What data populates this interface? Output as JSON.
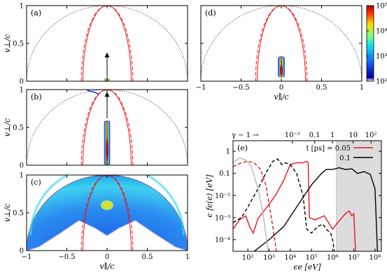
{
  "chart_data": [
    {
      "type": "heatmap",
      "panel": "(a)",
      "xlabel": "",
      "ylabel": "v⊥/c",
      "xlim": [
        -1,
        1
      ],
      "ylim": [
        0,
        1
      ],
      "x_ticks": [],
      "y_ticks": [
        "0",
        "0.5",
        "1"
      ],
      "distribution": {
        "center_x": 0.0,
        "v_perp_max": 0.02,
        "width": 0.02
      },
      "arrow": {
        "x": 0.0,
        "from": 0.05,
        "to": 0.38
      }
    },
    {
      "type": "heatmap",
      "panel": "(b)",
      "xlabel": "",
      "ylabel": "v⊥/c",
      "xlim": [
        -1,
        1
      ],
      "ylim": [
        0,
        1
      ],
      "x_ticks": [],
      "y_ticks": [
        "0",
        "0.5",
        "1"
      ],
      "distribution": {
        "center_x": 0.0,
        "v_perp_min": 0.0,
        "v_perp_max": 0.58,
        "width": 0.05
      },
      "arrow": {
        "x": 0.0,
        "from": 0.62,
        "to": 0.97
      }
    },
    {
      "type": "heatmap",
      "panel": "(c)",
      "xlabel": "v∥/c",
      "ylabel": "v⊥/c",
      "xlim": [
        -1,
        1
      ],
      "ylim": [
        0,
        1
      ],
      "x_ticks": [
        "−1",
        "−0.5",
        "0",
        "0.5",
        "1"
      ],
      "y_ticks": [
        "0",
        "0.5",
        "1"
      ],
      "distribution": {
        "shape": "shell",
        "radius": 1.0,
        "hot_spot": [
          0.0,
          0.6
        ]
      }
    },
    {
      "type": "heatmap",
      "panel": "(d)",
      "xlabel": "v∥/c",
      "ylabel": "",
      "xlim": [
        -1,
        1
      ],
      "ylim": [
        0,
        1
      ],
      "x_ticks": [
        "−1",
        "−0.5",
        "0",
        "0.5",
        "1"
      ],
      "y_ticks": [],
      "distribution": {
        "center_x": 0.0,
        "v_perp_min": 0.05,
        "v_perp_max": 0.32,
        "width": 0.06
      },
      "colorbar": {
        "scale": "log",
        "range": [
          100,
          100000
        ],
        "labels": [
          "10²",
          "10³",
          "10⁴",
          "10⁵"
        ]
      }
    },
    {
      "type": "line",
      "panel": "(e)",
      "xlabel": "ϵe [eV]",
      "ylabel": "ϵ fϵ(ϵ) [eV]",
      "x_scale": "log",
      "y_scale": "log",
      "xlim": [
        20,
        200000000
      ],
      "ylim": [
        3e-05,
        3
      ],
      "x_ticks": [
        "10²",
        "10³",
        "10⁴",
        "10⁵",
        "10⁶",
        "10⁷",
        "10⁸"
      ],
      "y_ticks": [
        "10⁻⁴",
        "10⁻³",
        "10⁻²",
        "0.1",
        "1"
      ],
      "top_axis_label": "γ − 1 →",
      "top_ticks": [
        "10⁻²",
        "0.1",
        "1",
        "10",
        "10²"
      ],
      "legend_title": "t [ps] = 0.05",
      "legend_entries": [
        "0.05",
        "0.1"
      ],
      "shaded_region_x": [
        1500000,
        200000000
      ],
      "series": [
        {
          "name": "0.05",
          "color": "#e8141c",
          "dash": "solid",
          "points": [
            [
              20,
              0.0003
            ],
            [
              40,
              0.0008
            ],
            [
              80,
              0.0012
            ],
            [
              120,
              0.0004
            ],
            [
              180,
              0.0002
            ],
            [
              300,
              0.0009
            ],
            [
              800,
              0.003
            ],
            [
              2000,
              0.01
            ],
            [
              5000,
              0.05
            ],
            [
              10000,
              0.25
            ],
            [
              20000,
              0.3
            ],
            [
              40000,
              0.3
            ],
            [
              60000,
              0.35
            ],
            [
              70000,
              0.3
            ],
            [
              80000,
              0.001
            ],
            [
              150000,
              0.0008
            ],
            [
              400000,
              0.0012
            ],
            [
              1000000,
              0.0003
            ],
            [
              2000000,
              0.0007
            ],
            [
              4000000,
              0.0015
            ],
            [
              6000000,
              0.002
            ],
            [
              8000000,
              0.0012
            ],
            [
              10000000,
              0.0015
            ],
            [
              12000000,
              3e-05
            ]
          ]
        },
        {
          "name": "",
          "color": "#e8141c",
          "dash": "dashed",
          "points": [
            [
              20,
              0.2
            ],
            [
              50,
              0.3
            ],
            [
              100,
              0.35
            ],
            [
              200,
              0.3
            ],
            [
              400,
              0.15
            ],
            [
              700,
              0.03
            ],
            [
              1000,
              0.004
            ],
            [
              1500,
              0.0004
            ],
            [
              2200,
              3e-05
            ]
          ]
        },
        {
          "name": "0.1",
          "color": "#000000",
          "dash": "solid",
          "points": [
            [
              200,
              3e-05
            ],
            [
              1000,
              0.0001
            ],
            [
              5000,
              0.0004
            ],
            [
              20000,
              0.003
            ],
            [
              100000,
              0.03
            ],
            [
              300000,
              0.1
            ],
            [
              500000,
              0.15
            ],
            [
              1000000,
              0.15
            ],
            [
              2000000,
              0.18
            ],
            [
              4000000,
              0.15
            ],
            [
              8000000,
              0.16
            ],
            [
              15000000,
              0.1
            ],
            [
              30000000,
              0.12
            ],
            [
              60000000,
              0.09
            ],
            [
              100000000,
              0.02
            ],
            [
              130000000,
              3e-05
            ]
          ]
        },
        {
          "name": "",
          "color": "#000000",
          "dash": "dashed",
          "points": [
            [
              20,
              0.0006
            ],
            [
              50,
              0.001
            ],
            [
              100,
              0.003
            ],
            [
              300,
              0.02
            ],
            [
              700,
              0.1
            ],
            [
              1500,
              0.35
            ],
            [
              2500,
              0.45
            ],
            [
              4000,
              0.25
            ],
            [
              6000,
              0.3
            ],
            [
              10000,
              0.25
            ],
            [
              20000,
              0.1
            ],
            [
              40000,
              0.01
            ],
            [
              60000,
              0.0003
            ],
            [
              100000,
              0.0002
            ],
            [
              200000,
              0.0004
            ],
            [
              350000,
              0.0005
            ],
            [
              500000,
              0.0003
            ],
            [
              800000,
              0.0002
            ],
            [
              1000000,
              0.0001
            ],
            [
              1200000,
              3e-05
            ]
          ]
        },
        {
          "name": "",
          "color": "#b8b8b8",
          "dash": "solid",
          "points": [
            [
              20,
              0.3
            ],
            [
              40,
              0.5
            ],
            [
              80,
              0.4
            ],
            [
              150,
              0.2
            ],
            [
              300,
              0.02
            ],
            [
              500,
              0.002
            ],
            [
              700,
              0.0002
            ],
            [
              900,
              3e-05
            ]
          ]
        }
      ]
    }
  ]
}
